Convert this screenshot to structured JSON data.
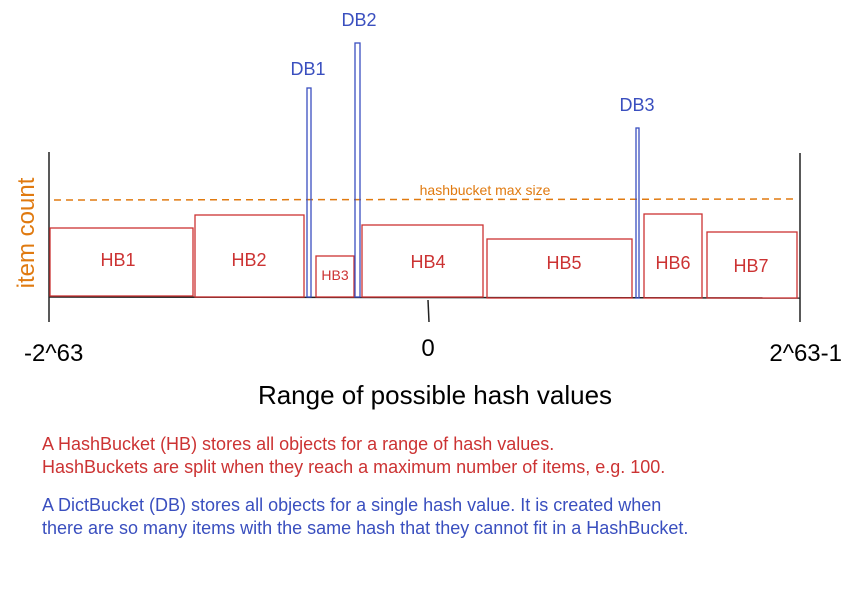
{
  "colors": {
    "hashbucket": "#cc3333",
    "dictbucket": "#3a4fbf",
    "threshold": "#e07a10",
    "axis": "#222222",
    "text": "#000000"
  },
  "y_axis_label": "item count",
  "x_axis_title": "Range of possible hash values",
  "x_ticks": {
    "min": "-2^63",
    "mid": "0",
    "max": "2^63-1"
  },
  "threshold_label": "hashbucket max size",
  "hash_buckets": [
    {
      "label": "HB1",
      "fill_ratio": 0.72
    },
    {
      "label": "HB2",
      "fill_ratio": 0.86
    },
    {
      "label": "HB3",
      "fill_ratio": 0.44
    },
    {
      "label": "HB4",
      "fill_ratio": 0.75
    },
    {
      "label": "HB5",
      "fill_ratio": 0.62
    },
    {
      "label": "HB6",
      "fill_ratio": 0.87
    },
    {
      "label": "HB7",
      "fill_ratio": 0.68
    }
  ],
  "dict_buckets": [
    {
      "label": "DB1"
    },
    {
      "label": "DB2"
    },
    {
      "label": "DB3"
    }
  ],
  "notes": {
    "hb_line1": "A HashBucket (HB) stores all objects for a range of hash values.",
    "hb_line2": "HashBuckets are split when they reach a maximum number of items, e.g. 100.",
    "db_line1": "A DictBucket (DB) stores all objects for a single hash value. It is created when",
    "db_line2": "there are so many items with the same hash that they cannot fit in a HashBucket."
  }
}
